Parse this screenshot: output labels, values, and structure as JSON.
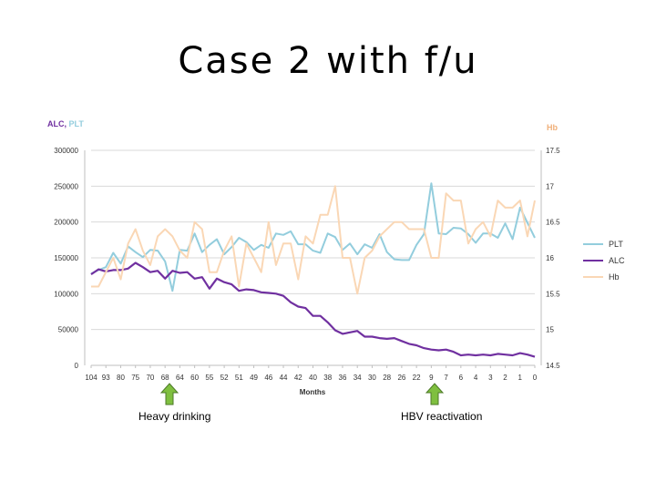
{
  "slide": {
    "title": "Case 2 with f/u"
  },
  "chart_data": {
    "type": "line",
    "left_axis_title": {
      "alc": "ALC",
      "sep": ", ",
      "plt": "PLT"
    },
    "right_axis_title": "Hb",
    "xlabel": "Months",
    "x_ticks": [
      "104",
      "93",
      "80",
      "75",
      "70",
      "68",
      "64",
      "60",
      "55",
      "52",
      "51",
      "49",
      "46",
      "44",
      "42",
      "40",
      "38",
      "36",
      "34",
      "30",
      "28",
      "26",
      "22",
      "9",
      "7",
      "6",
      "4",
      "3",
      "2",
      "1",
      "0"
    ],
    "y_left": {
      "ylim": [
        0,
        300000
      ],
      "ticks": [
        "0",
        "50000",
        "100000",
        "150000",
        "200000",
        "250000",
        "300000"
      ]
    },
    "y_right": {
      "ylim": [
        14.5,
        17.5
      ],
      "ticks": [
        "14.5",
        "15",
        "15.5",
        "16",
        "16.5",
        "17",
        "17.5"
      ]
    },
    "grid": "horizontal",
    "legend_position": "right",
    "legend": [
      "PLT",
      "ALC",
      "Hb"
    ],
    "series": [
      {
        "name": "PLT",
        "axis": "left",
        "color": "#93cddd",
        "values": [
          128000,
          133000,
          137000,
          157000,
          142000,
          166000,
          158000,
          151000,
          161000,
          160000,
          145000,
          104000,
          161000,
          160000,
          184000,
          158000,
          168000,
          176000,
          155000,
          165000,
          178000,
          172000,
          161000,
          168000,
          164000,
          184000,
          182000,
          187000,
          169000,
          169000,
          160000,
          157000,
          184000,
          179000,
          161000,
          170000,
          155000,
          169000,
          164000,
          183000,
          158000,
          148000,
          147000,
          147000,
          168000,
          183000,
          254000,
          184000,
          183000,
          192000,
          191000,
          183000,
          171000,
          184000,
          184000,
          178000,
          198000,
          176000,
          220000,
          199000,
          178000
        ]
      },
      {
        "name": "ALC",
        "axis": "left",
        "color": "#7030a0",
        "values": [
          127000,
          134000,
          131000,
          133000,
          133000,
          135000,
          143000,
          137000,
          130000,
          132000,
          121000,
          132000,
          129000,
          130000,
          121000,
          123000,
          107000,
          121000,
          116000,
          113000,
          104000,
          106000,
          105000,
          102000,
          101000,
          100000,
          97000,
          88000,
          82000,
          80000,
          69000,
          69000,
          60000,
          49000,
          44000,
          46000,
          48000,
          40000,
          40000,
          38000,
          37000,
          38000,
          34000,
          30000,
          28000,
          24000,
          22000,
          21000,
          22000,
          19000,
          14000,
          15000,
          14000,
          15000,
          14000,
          16000,
          15000,
          14000,
          17000,
          15000,
          12000
        ]
      },
      {
        "name": "Hb",
        "axis": "right",
        "color": "#fad7b5",
        "values": [
          15.6,
          15.6,
          15.8,
          16.0,
          15.7,
          16.2,
          16.4,
          16.1,
          15.9,
          16.3,
          16.4,
          16.3,
          16.1,
          16.0,
          16.5,
          16.4,
          15.8,
          15.8,
          16.1,
          16.3,
          15.6,
          16.2,
          16.0,
          15.8,
          16.5,
          15.9,
          16.2,
          16.2,
          15.7,
          16.3,
          16.2,
          16.6,
          16.6,
          17.0,
          16.0,
          16.0,
          15.5,
          16.0,
          16.1,
          16.3,
          16.4,
          16.5,
          16.5,
          16.4,
          16.4,
          16.4,
          16.0,
          16.0,
          16.9,
          16.8,
          16.8,
          16.2,
          16.4,
          16.5,
          16.3,
          16.8,
          16.7,
          16.7,
          16.8,
          16.3,
          16.8
        ]
      }
    ]
  },
  "annotations": [
    {
      "label": "Heavy drinking",
      "arrow_color": "#7fbf3f"
    },
    {
      "label": "HBV reactivation",
      "arrow_color": "#7fbf3f"
    }
  ]
}
